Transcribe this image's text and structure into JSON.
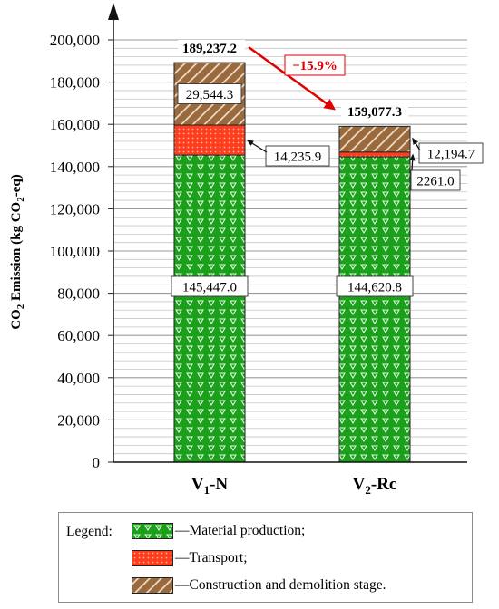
{
  "chart_data": {
    "type": "bar",
    "stacked": true,
    "categories": [
      {
        "main": "V",
        "sub": "1",
        "suffix": "-N"
      },
      {
        "main": "V",
        "sub": "2",
        "suffix": "-Rc"
      }
    ],
    "series": [
      {
        "name": "Material production",
        "values": [
          145447.0,
          144620.8
        ],
        "color": "#1ca01c",
        "pattern": "inverted-triangles"
      },
      {
        "name": "Transport",
        "values": [
          14235.9,
          2261.0
        ],
        "color": "#ff3d1f",
        "pattern": "dots"
      },
      {
        "name": "Construction and demolition stage",
        "values": [
          29544.3,
          12194.7
        ],
        "color": "#9a6a3c",
        "pattern": "diagonal-hatch"
      }
    ],
    "totals": [
      189237.2,
      159077.3
    ],
    "total_labels": [
      "189,237.2",
      "159,077.3"
    ],
    "segment_labels": [
      [
        "145,447.0",
        "14,235.9",
        "29,544.3"
      ],
      [
        "144,620.8",
        "2261.0",
        "12,194.7"
      ]
    ],
    "reduction_label": "−15.9%",
    "reduction_color": "#e00000",
    "ylabel": {
      "prefix": "CO",
      "sub": "2",
      "middle": " Emission (kg CO",
      "sub2": "2",
      "suffix": "-eq)"
    },
    "ylim": [
      0,
      200000
    ],
    "yticks": [
      0,
      20000,
      40000,
      60000,
      80000,
      100000,
      120000,
      140000,
      160000,
      180000,
      200000
    ],
    "ytick_labels": [
      "0",
      "20,000",
      "40,000",
      "60,000",
      "80,000",
      "100,000",
      "120,000",
      "140,000",
      "160,000",
      "180,000",
      "200,000"
    ],
    "grid": true,
    "legend_placement": "bottom"
  },
  "legend": {
    "title": "Legend:",
    "items": [
      {
        "text": "—Material production;"
      },
      {
        "text": "—Transport;"
      },
      {
        "text": "—Construction and demolition stage."
      }
    ]
  }
}
